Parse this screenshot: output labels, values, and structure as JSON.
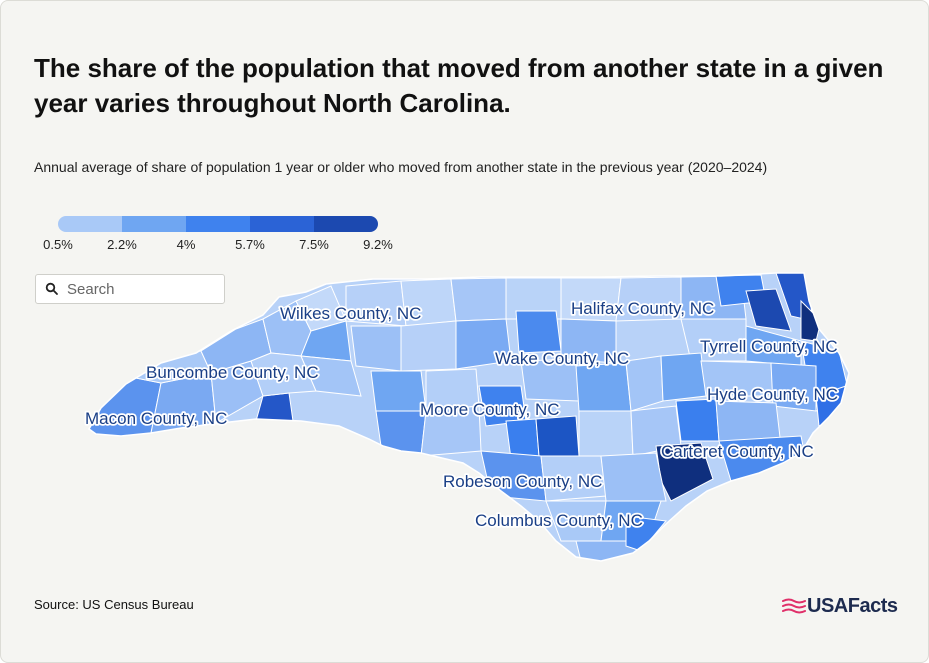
{
  "title": "The share of the population that moved from another state in a given year varies throughout North Carolina.",
  "subtitle": "Annual average of share of population 1 year or older who moved from another state in the previous year (2020–2024)",
  "legend": {
    "labels": [
      "0.5%",
      "2.2%",
      "4%",
      "5.7%",
      "7.5%",
      "9.2%"
    ],
    "colors": [
      "#a9c9f7",
      "#6fa6f2",
      "#3f82ee",
      "#2b63d6",
      "#1c49b0",
      "#0f2f7e"
    ]
  },
  "search": {
    "placeholder": "Search",
    "value": ""
  },
  "map_labels": {
    "wilkes": "Wilkes County, NC",
    "halifax": "Halifax County, NC",
    "wake": "Wake County, NC",
    "tyrrell": "Tyrrell County, NC",
    "buncombe": "Buncombe County, NC",
    "hyde": "Hyde County, NC",
    "macon": "Macon County, NC",
    "moore": "Moore County, NC",
    "carteret": "Carteret County, NC",
    "robeson": "Robeson County, NC",
    "columbus": "Columbus County, NC"
  },
  "colors": {
    "state_base": "#b8d2f8",
    "county_border": "#ffffff"
  },
  "source": "Source: US Census Bureau",
  "brand": {
    "name": "USAFacts",
    "flag_color": "#e0306a"
  }
}
